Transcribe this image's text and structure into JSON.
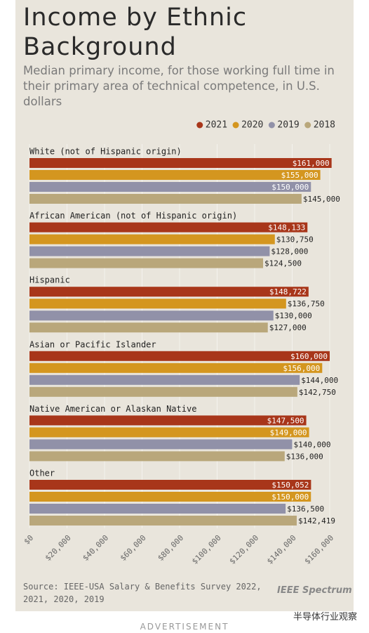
{
  "chart_data": {
    "type": "bar",
    "orientation": "horizontal",
    "title": "Income by Ethnic Background",
    "subtitle": "Median primary income, for those working full time in their primary area of technical competence, in U.S. dollars",
    "categories": [
      "White (not of Hispanic origin)",
      "African American (not of Hispanic origin)",
      "Hispanic",
      "Asian or Pacific Islander",
      "Native American or Alaskan Native",
      "Other"
    ],
    "series": [
      {
        "name": "2021",
        "color": "#a8361a",
        "values": [
          161000,
          148133,
          148722,
          160000,
          147500,
          150052
        ],
        "value_labels": [
          "$161,000",
          "$148,133",
          "$148,722",
          "$160,000",
          "$147,500",
          "$150,052"
        ]
      },
      {
        "name": "2020",
        "color": "#d4961f",
        "values": [
          155000,
          130750,
          136750,
          156000,
          149000,
          150000
        ],
        "value_labels": [
          "$155,000",
          "$130,750",
          "$136,750",
          "$156,000",
          "$149,000",
          "$150,000"
        ]
      },
      {
        "name": "2019",
        "color": "#9191a8",
        "values": [
          150000,
          128000,
          130000,
          144000,
          140000,
          136500
        ],
        "value_labels": [
          "$150,000",
          "$128,000",
          "$130,000",
          "$144,000",
          "$140,000",
          "$136,500"
        ]
      },
      {
        "name": "2018",
        "color": "#b9a77b",
        "values": [
          145000,
          124500,
          127000,
          142750,
          136000,
          142419
        ],
        "value_labels": [
          "$145,000",
          "$124,500",
          "$127,000",
          "$142,750",
          "$136,000",
          "$142,419"
        ]
      }
    ],
    "xlim": [
      0,
      160000
    ],
    "xticks": [
      {
        "value": 0,
        "label": "$0"
      },
      {
        "value": 20000,
        "label": "$20,000"
      },
      {
        "value": 40000,
        "label": "$40,000"
      },
      {
        "value": 60000,
        "label": "$60,000"
      },
      {
        "value": 80000,
        "label": "$80,000"
      },
      {
        "value": 100000,
        "label": "$100,000"
      },
      {
        "value": 120000,
        "label": "$120,000"
      },
      {
        "value": 140000,
        "label": "$140,000"
      },
      {
        "value": 160000,
        "label": "$160,000"
      }
    ],
    "grid": true,
    "legend": "top-right",
    "source": "Source: IEEE-USA Salary & Benefits Survey 2022, 2021, 2020, 2019",
    "brand": "IEEE Spectrum"
  },
  "page": {
    "watermark": "半导体行业观察",
    "advertisement": "ADVERTISEMENT"
  }
}
